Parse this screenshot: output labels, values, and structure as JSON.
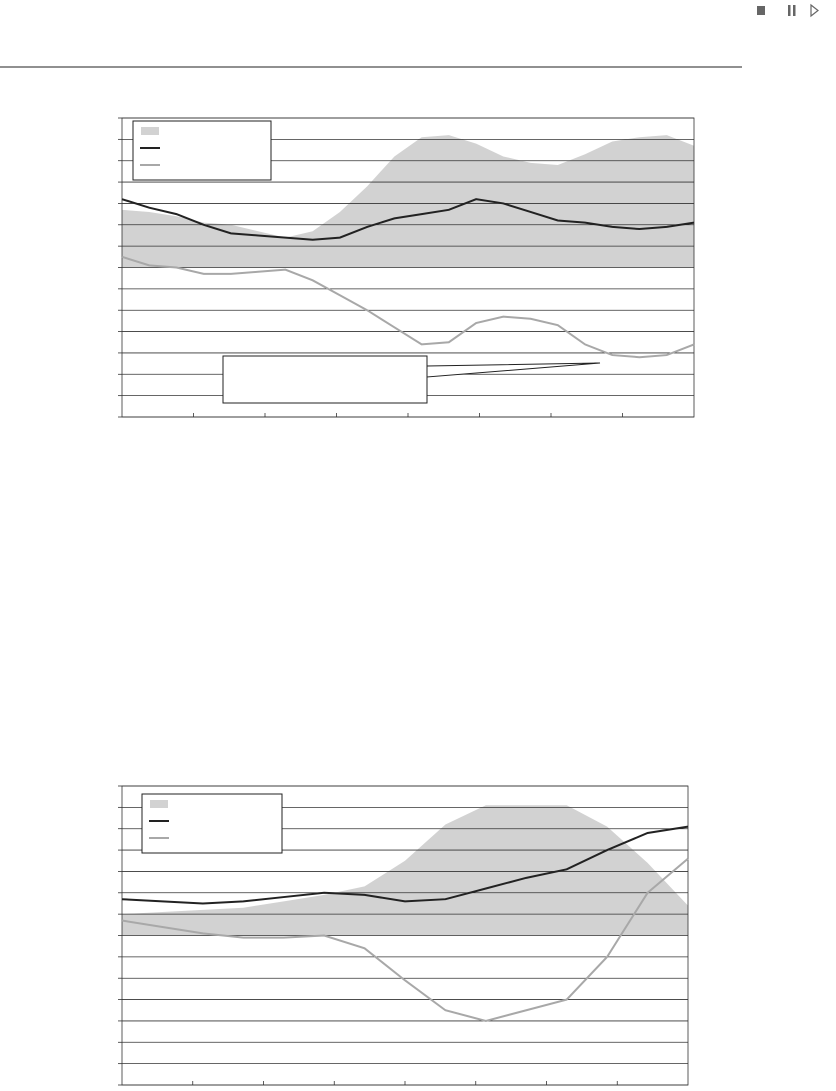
{
  "chart_data": [
    {
      "type": "line",
      "ylim": [
        -7,
        7
      ],
      "yticks": [
        -7,
        -6,
        -5,
        -4,
        -3,
        -2,
        -1,
        0,
        1,
        2,
        3,
        4,
        5,
        6,
        7
      ],
      "grid": true,
      "series": [
        {
          "type": "area",
          "color": "#d2d2d2",
          "values": [
            2.7,
            2.6,
            2.4,
            2.1,
            2.0,
            1.7,
            1.4,
            1.7,
            2.6,
            3.8,
            5.2,
            6.1,
            6.2,
            5.8,
            5.2,
            4.9,
            4.8,
            5.3,
            5.9,
            6.1,
            6.2,
            5.7
          ]
        },
        {
          "type": "line",
          "color": "#222222",
          "values": [
            3.2,
            2.8,
            2.5,
            2.0,
            1.6,
            1.5,
            1.4,
            1.3,
            1.4,
            1.9,
            2.3,
            2.5,
            2.7,
            3.2,
            3.0,
            2.6,
            2.2,
            2.1,
            1.9,
            1.8,
            1.9,
            2.1
          ]
        },
        {
          "type": "line",
          "color": "#a8a8a8",
          "values": [
            0.5,
            0.1,
            0,
            -0.3,
            -0.3,
            -0.2,
            -0.1,
            -0.6,
            -1.3,
            -2.0,
            -2.8,
            -3.6,
            -3.5,
            -2.6,
            -2.3,
            -2.4,
            -2.7,
            -3.6,
            -4.1,
            -4.2,
            -4.1,
            -3.6
          ]
        }
      ]
    },
    {
      "type": "line",
      "ylim": [
        -7,
        7
      ],
      "yticks": [
        -7,
        -6,
        -5,
        -4,
        -3,
        -2,
        -1,
        0,
        1,
        2,
        3,
        4,
        5,
        6,
        7
      ],
      "grid": true,
      "series": [
        {
          "type": "area",
          "color": "#d2d2d2",
          "values": [
            1.0,
            1.1,
            1.2,
            1.3,
            1.6,
            1.9,
            2.3,
            3.5,
            5.2,
            6.1,
            6.1,
            6.1,
            5.1,
            3.4,
            1.4
          ]
        },
        {
          "type": "line",
          "color": "#222222",
          "values": [
            1.7,
            1.6,
            1.5,
            1.6,
            1.8,
            2.0,
            1.9,
            1.6,
            1.7,
            2.2,
            2.7,
            3.1,
            4.0,
            4.8,
            5.1
          ]
        },
        {
          "type": "line",
          "color": "#a8a8a8",
          "values": [
            0.7,
            0.4,
            0.1,
            -0.1,
            -0.1,
            0,
            -0.6,
            -2.1,
            -3.5,
            -4.0,
            -3.5,
            -3.0,
            -1.0,
            2.0,
            3.6
          ]
        }
      ]
    }
  ]
}
